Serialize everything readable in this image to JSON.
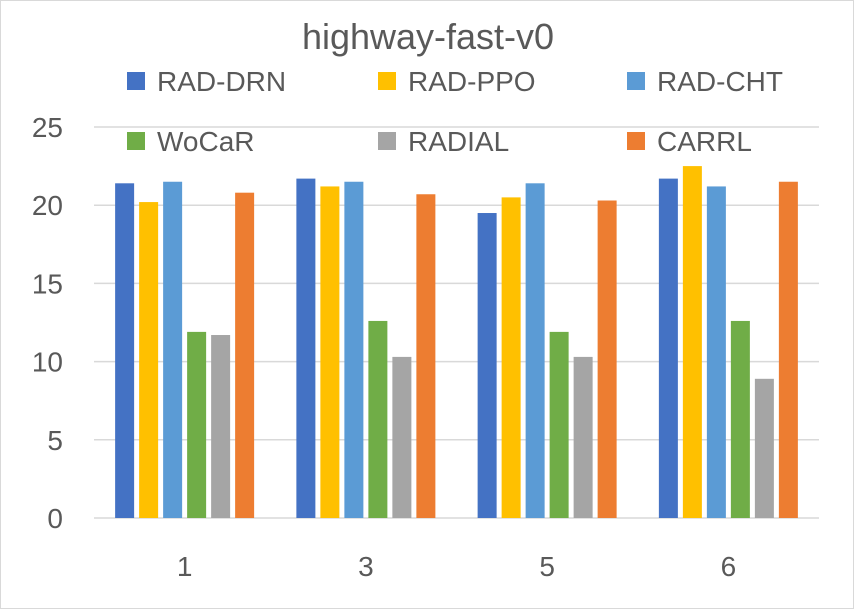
{
  "chart_data": {
    "type": "bar",
    "title": "highway-fast-v0",
    "xlabel": "",
    "ylabel": "",
    "categories": [
      "1",
      "3",
      "5",
      "6"
    ],
    "ylim": [
      0,
      25
    ],
    "yticks": [
      "0",
      "5",
      "10",
      "15",
      "20",
      "25"
    ],
    "grid": true,
    "legend_position": "top",
    "series": [
      {
        "name": "RAD-DRN",
        "color": "#4472c4",
        "values": [
          21.4,
          21.7,
          19.5,
          21.7
        ]
      },
      {
        "name": "RAD-PPO",
        "color": "#ffc000",
        "values": [
          20.2,
          21.2,
          20.5,
          22.5
        ]
      },
      {
        "name": "RAD-CHT",
        "color": "#5b9bd5",
        "values": [
          21.5,
          21.5,
          21.4,
          21.2
        ]
      },
      {
        "name": "WoCaR",
        "color": "#70ad47",
        "values": [
          11.9,
          12.6,
          11.9,
          12.6
        ]
      },
      {
        "name": "RADIAL",
        "color": "#a5a5a5",
        "values": [
          11.7,
          10.3,
          10.3,
          8.9
        ]
      },
      {
        "name": "CARRL",
        "color": "#ed7d31",
        "values": [
          20.8,
          20.7,
          20.3,
          21.5
        ]
      }
    ]
  }
}
